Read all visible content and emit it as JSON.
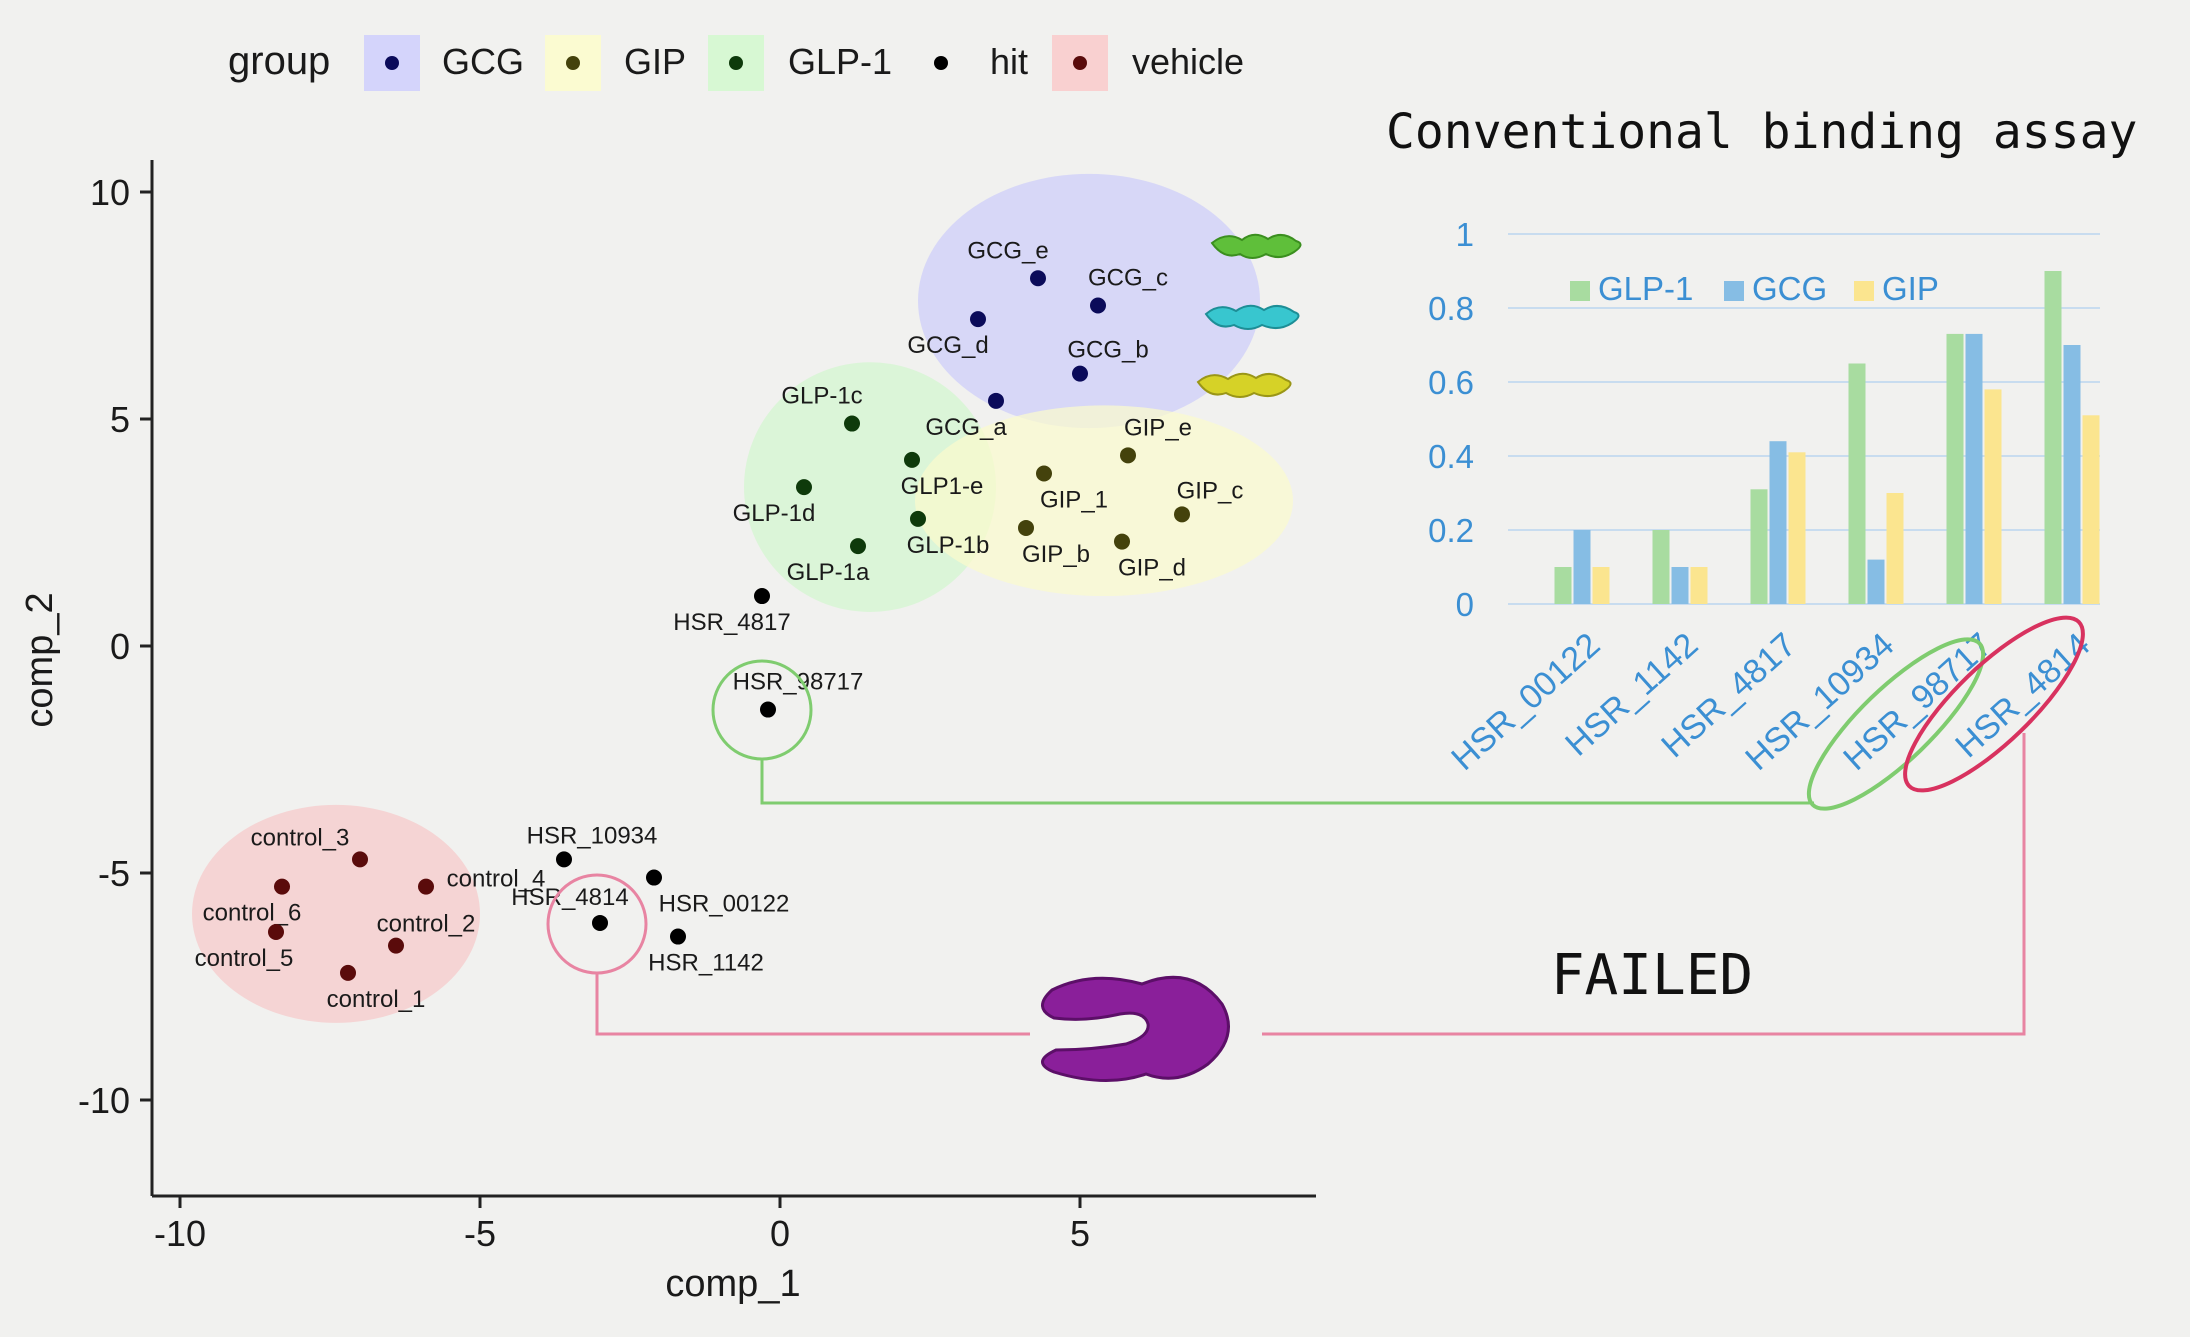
{
  "legend": {
    "title": "group",
    "items": [
      {
        "label": "GCG",
        "bg": "#d4d4fb",
        "dot": "#0b0b5a"
      },
      {
        "label": "GIP",
        "bg": "#fbfbd1",
        "dot": "#44420c"
      },
      {
        "label": "GLP-1",
        "bg": "#d7f8d3",
        "dot": "#0e3a0b"
      },
      {
        "label": "hit",
        "bg": "",
        "dot": "#000000"
      },
      {
        "label": "vehicle",
        "bg": "#f9d0d0",
        "dot": "#5a0b0b"
      }
    ]
  },
  "chart_data": [
    {
      "type": "scatter",
      "xlabel": "comp_1",
      "ylabel": "comp_2",
      "xlim": [
        -10.5,
        9
      ],
      "ylim": [
        -12,
        11
      ],
      "xticks": [
        -10,
        -5,
        0,
        5
      ],
      "yticks": [
        10,
        5,
        0,
        -5,
        -10
      ],
      "clusters": [
        {
          "group": "GCG",
          "cx": 5.15,
          "cy": 7.6,
          "rx": 2.85,
          "ry": 2.8,
          "color": "#cdcdfa"
        },
        {
          "group": "GLP-1",
          "cx": 1.5,
          "cy": 3.5,
          "rx": 2.1,
          "ry": 2.75,
          "color": "#d3f6cf"
        },
        {
          "group": "GIP",
          "cx": 5.4,
          "cy": 3.2,
          "rx": 3.15,
          "ry": 2.1,
          "color": "#fbfbcd"
        },
        {
          "group": "vehicle",
          "cx": -7.4,
          "cy": -5.9,
          "rx": 2.4,
          "ry": 2.4,
          "color": "#f7c9c9"
        }
      ],
      "points": [
        {
          "label": "GCG_e",
          "x": 4.3,
          "y": 8.1,
          "group": "GCG"
        },
        {
          "label": "GCG_c",
          "x": 5.3,
          "y": 7.5,
          "group": "GCG"
        },
        {
          "label": "GCG_d",
          "x": 3.3,
          "y": 7.2,
          "group": "GCG"
        },
        {
          "label": "GCG_b",
          "x": 5.0,
          "y": 6.0,
          "group": "GCG"
        },
        {
          "label": "GCG_a",
          "x": 3.6,
          "y": 5.4,
          "group": "GCG"
        },
        {
          "label": "GLP-1c",
          "x": 1.2,
          "y": 4.9,
          "group": "GLP-1"
        },
        {
          "label": "GLP1-e",
          "x": 2.2,
          "y": 4.1,
          "group": "GLP-1"
        },
        {
          "label": "GLP-1d",
          "x": 0.4,
          "y": 3.5,
          "group": "GLP-1"
        },
        {
          "label": "GLP-1b",
          "x": 2.3,
          "y": 2.8,
          "group": "GLP-1"
        },
        {
          "label": "GLP-1a",
          "x": 1.3,
          "y": 2.2,
          "group": "GLP-1"
        },
        {
          "label": "GIP_e",
          "x": 5.8,
          "y": 4.2,
          "group": "GIP"
        },
        {
          "label": "GIP_1",
          "x": 4.4,
          "y": 3.8,
          "group": "GIP"
        },
        {
          "label": "GIP_c",
          "x": 6.7,
          "y": 2.9,
          "group": "GIP"
        },
        {
          "label": "GIP_b",
          "x": 4.1,
          "y": 2.6,
          "group": "GIP"
        },
        {
          "label": "GIP_d",
          "x": 5.7,
          "y": 2.3,
          "group": "GIP"
        },
        {
          "label": "HSR_4817",
          "x": -0.3,
          "y": 1.1,
          "group": "hit"
        },
        {
          "label": "HSR_98717",
          "x": -0.2,
          "y": -1.4,
          "group": "hit"
        },
        {
          "label": "HSR_10934",
          "x": -3.6,
          "y": -4.7,
          "group": "hit"
        },
        {
          "label": "HSR_00122",
          "x": -2.1,
          "y": -5.1,
          "group": "hit"
        },
        {
          "label": "HSR_4814",
          "x": -3.0,
          "y": -6.1,
          "group": "hit"
        },
        {
          "label": "HSR_1142",
          "x": -1.7,
          "y": -6.4,
          "group": "hit"
        },
        {
          "label": "control_3",
          "x": -7.0,
          "y": -4.7,
          "group": "vehicle"
        },
        {
          "label": "control_4",
          "x": -5.9,
          "y": -5.3,
          "group": "vehicle"
        },
        {
          "label": "control_6",
          "x": -8.3,
          "y": -5.3,
          "group": "vehicle"
        },
        {
          "label": "control_2",
          "x": -6.4,
          "y": -6.6,
          "group": "vehicle"
        },
        {
          "label": "control_5",
          "x": -8.4,
          "y": -6.3,
          "group": "vehicle"
        },
        {
          "label": "control_1",
          "x": -7.2,
          "y": -7.2,
          "group": "vehicle"
        }
      ]
    },
    {
      "type": "bar",
      "title": "Conventional binding assay",
      "categories": [
        "HSR_00122",
        "HSR_1142",
        "HSR_4817",
        "HSR_10934",
        "HSR_98717",
        "HSR_4814"
      ],
      "ylim": [
        0,
        1
      ],
      "yticks": [
        "0",
        "0.2",
        "0.4",
        "0.6",
        "0.8",
        "1"
      ],
      "series": [
        {
          "name": "GLP-1",
          "color": "#a8dca0",
          "values": [
            0.1,
            0.2,
            0.31,
            0.65,
            0.73,
            0.9
          ]
        },
        {
          "name": "GCG",
          "color": "#86bde4",
          "values": [
            0.2,
            0.1,
            0.44,
            0.12,
            0.73,
            0.7
          ]
        },
        {
          "name": "GIP",
          "color": "#fbe58f",
          "values": [
            0.1,
            0.1,
            0.41,
            0.3,
            0.58,
            0.51
          ]
        }
      ]
    }
  ],
  "annotation": {
    "failed": "FAILED",
    "highlight_green": "HSR_98717",
    "highlight_pink": "HSR_4814"
  },
  "colors": {
    "axis_text_blue": "#3b8fd3",
    "green_line": "#7fcc6f",
    "pink_line": "#e884a2",
    "red_oval": "#d8325f",
    "gridline": "#c8dcef",
    "protein_purple": "#8a1f9a"
  }
}
